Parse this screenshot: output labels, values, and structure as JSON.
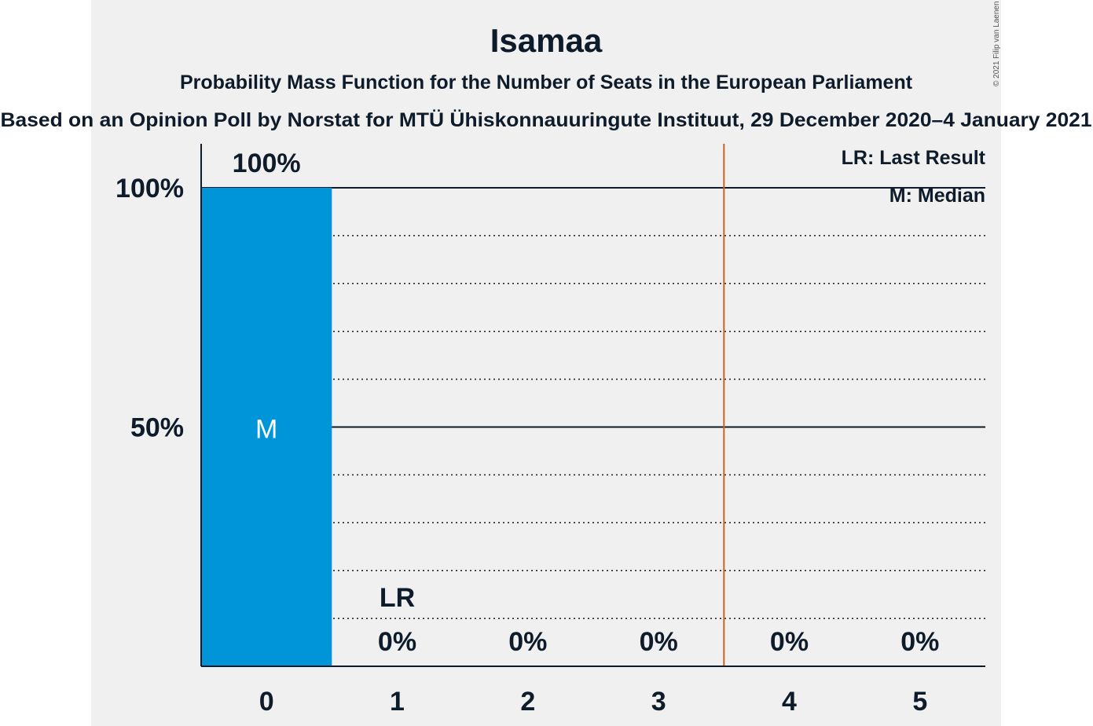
{
  "chart_data": {
    "type": "bar",
    "title": "Isamaa",
    "subtitle": "Probability Mass Function for the Number of Seats in the European Parliament",
    "source": "Based on an Opinion Poll by Norstat for MTÜ Ühiskonnauuringute Instituut, 29 December 2020–4 January 2021",
    "copyright": "© 2021 Filip van Laenen",
    "categories": [
      "0",
      "1",
      "2",
      "3",
      "4",
      "5"
    ],
    "values": [
      100,
      0,
      0,
      0,
      0,
      0
    ],
    "value_labels": [
      "100%",
      "0%",
      "0%",
      "0%",
      "0%",
      "0%"
    ],
    "ylim": [
      0,
      100
    ],
    "yticks": [
      {
        "value": 50,
        "label": "50%"
      },
      {
        "value": 100,
        "label": "100%"
      }
    ],
    "dotted_gridlines": [
      10,
      20,
      30,
      40,
      60,
      70,
      80,
      90
    ],
    "last_result": {
      "seats": 1,
      "label": "LR"
    },
    "median": {
      "seats": 0,
      "label": "M"
    },
    "majority_line_between": [
      3,
      4
    ],
    "legend": {
      "position": "top-right",
      "items": [
        "LR: Last Result",
        "M: Median"
      ]
    },
    "colors": {
      "bar": "#0095d9",
      "majority_line": "#c8641e",
      "plot_background": "#f0f0f0",
      "text": "#0d1b2a"
    }
  }
}
